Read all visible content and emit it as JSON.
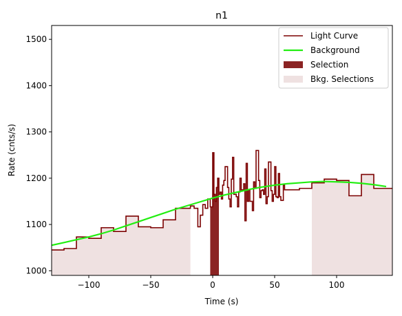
{
  "chart_data": {
    "type": "line",
    "title": "n1",
    "xlabel": "Time (s)",
    "ylabel": "Rate (cnts/s)",
    "xlim": [
      -130,
      145
    ],
    "ylim": [
      990,
      1530
    ],
    "xticks": [
      -100,
      -50,
      0,
      50,
      100
    ],
    "yticks": [
      1000,
      1100,
      1200,
      1300,
      1400,
      1500
    ],
    "xtick_labels": [
      "−100",
      "−50",
      "0",
      "50",
      "100"
    ],
    "ytick_labels": [
      "1000",
      "1100",
      "1200",
      "1300",
      "1400",
      "1500"
    ],
    "grid": false,
    "legend_position": "top-right",
    "legend": [
      {
        "label": "Light Curve",
        "kind": "line",
        "color": "#7b0000"
      },
      {
        "label": "Background",
        "kind": "line",
        "color": "#22ee11"
      },
      {
        "label": "Selection",
        "kind": "patch",
        "color": "#8b2323"
      },
      {
        "label": "Bkg. Selections",
        "kind": "patch",
        "color": "#efe1e1"
      }
    ],
    "colors": {
      "light_curve": "#7b0000",
      "background": "#22ee11",
      "selection": "#8b2323",
      "bkg_selection": "#efe1e1"
    },
    "bkg_selections": [
      [
        -130,
        -18
      ],
      [
        80,
        145
      ]
    ],
    "selection": [
      -2,
      5
    ],
    "light_curve": {
      "x": [
        -130,
        -120,
        -110,
        -100,
        -90,
        -80,
        -70,
        -60,
        -50,
        -40,
        -30,
        -20,
        -18,
        -15,
        -12,
        -10,
        -8,
        -6,
        -4,
        -2,
        0,
        1,
        2,
        3,
        4,
        5,
        6,
        7,
        8,
        9,
        10,
        12,
        13,
        14,
        15,
        16,
        17,
        19,
        20,
        21,
        22,
        23,
        25,
        26,
        27,
        28,
        29,
        30,
        32,
        33,
        34,
        35,
        37,
        38,
        39,
        40,
        41,
        42,
        43,
        44,
        45,
        47,
        48,
        49,
        50,
        51,
        52,
        53,
        54,
        55,
        57,
        58,
        60,
        70,
        80,
        90,
        100,
        110,
        120,
        130,
        145
      ],
      "y": [
        1045,
        1048,
        1073,
        1070,
        1093,
        1085,
        1118,
        1095,
        1093,
        1110,
        1135,
        1135,
        1140,
        1135,
        1095,
        1120,
        1143,
        1135,
        1155,
        1138,
        1255,
        1165,
        1150,
        1180,
        1200,
        1165,
        1170,
        1155,
        1185,
        1195,
        1225,
        1180,
        1155,
        1138,
        1198,
        1245,
        1165,
        1160,
        1138,
        1170,
        1200,
        1175,
        1188,
        1108,
        1232,
        1150,
        1175,
        1150,
        1130,
        1192,
        1178,
        1260,
        1195,
        1158,
        1173,
        1175,
        1165,
        1220,
        1145,
        1160,
        1235,
        1173,
        1150,
        1165,
        1225,
        1160,
        1158,
        1210,
        1160,
        1152,
        1185,
        1175,
        1175,
        1178,
        1190,
        1198,
        1195,
        1162,
        1208,
        1178,
        1182
      ]
    },
    "background_curve": {
      "x": [
        -130,
        -120,
        -110,
        -100,
        -90,
        -80,
        -70,
        -60,
        -50,
        -40,
        -30,
        -20,
        -10,
        0,
        10,
        20,
        30,
        40,
        50,
        60,
        70,
        80,
        90,
        100,
        110,
        120,
        130,
        140
      ],
      "y": [
        1055,
        1061,
        1067,
        1073,
        1080,
        1088,
        1097,
        1106,
        1115,
        1124,
        1133,
        1141,
        1149,
        1157,
        1164,
        1170,
        1176,
        1181,
        1185,
        1188,
        1190,
        1192,
        1193,
        1192,
        1191,
        1189,
        1186,
        1182
      ]
    }
  }
}
